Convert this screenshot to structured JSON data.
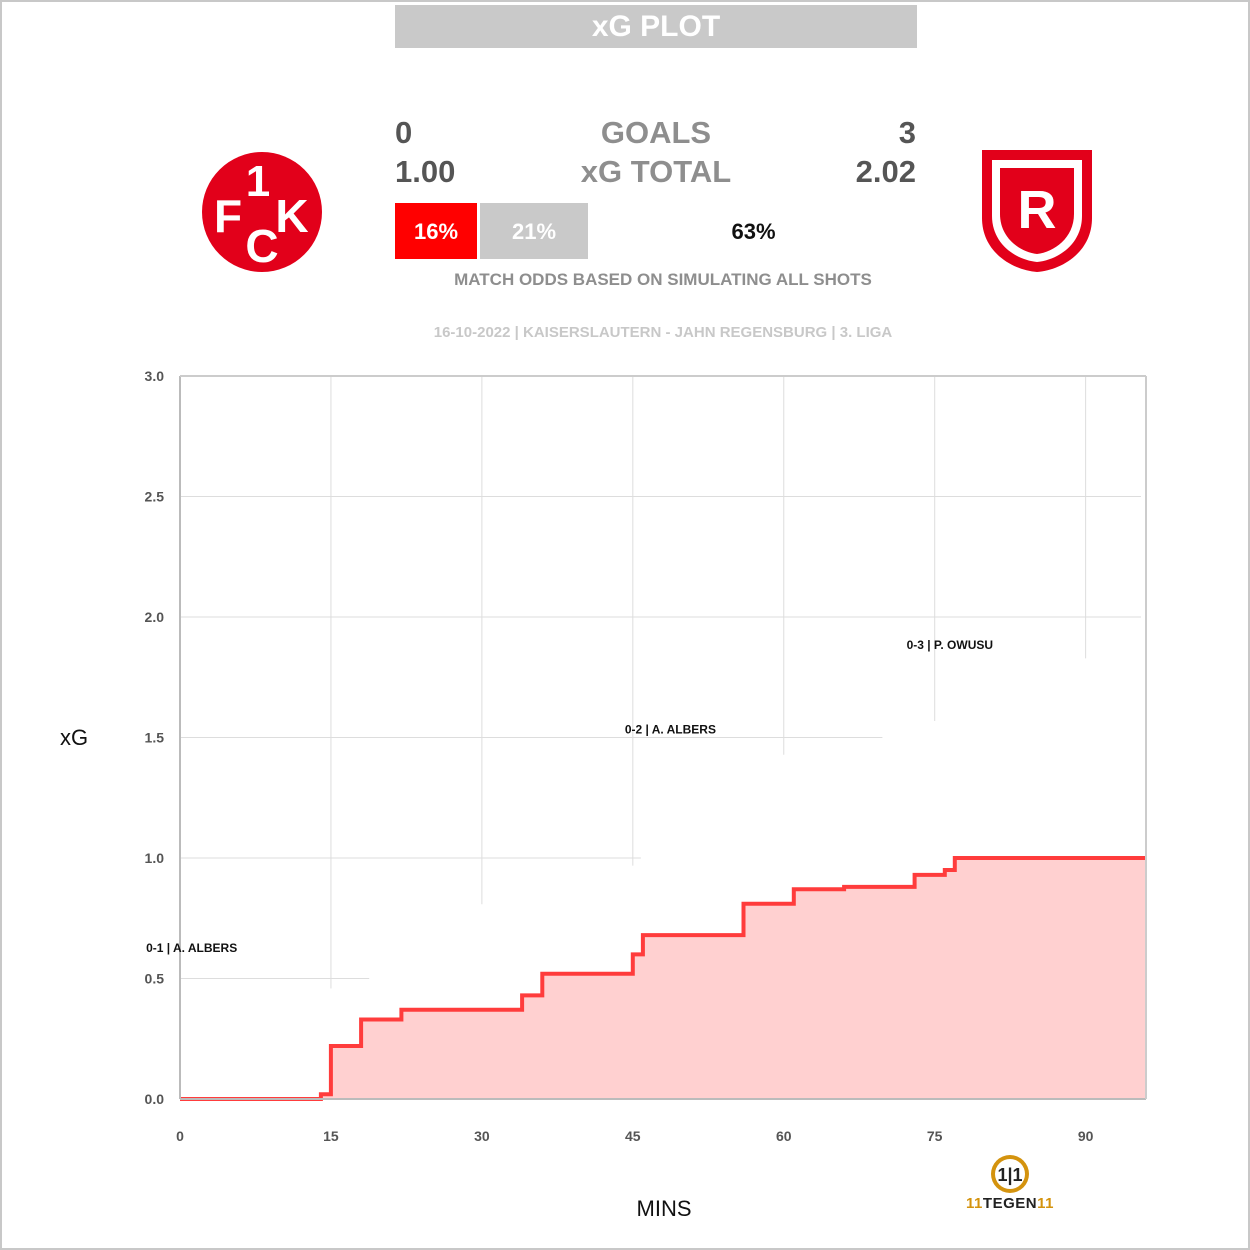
{
  "header": {
    "title": "xG PLOT"
  },
  "score": {
    "home_goals": "0",
    "away_goals": "3",
    "goals_label": "GOALS",
    "home_xg": "1.00",
    "away_xg": "2.02",
    "xg_label": "xG TOTAL"
  },
  "odds": {
    "home": "16%",
    "draw": "21%",
    "away": "63%",
    "home_fraction": 0.16,
    "draw_fraction": 0.21,
    "away_fraction": 0.63,
    "caption": "MATCH ODDS BASED ON SIMULATING ALL SHOTS"
  },
  "match_info": "16-10-2022 | KAISERSLAUTERN - JAHN REGENSBURG | 3. LIGA",
  "teams": {
    "home_logo_text": "1FCK",
    "away_logo_text": "R",
    "home_color": "#e2001a",
    "away_color": "#e2001a"
  },
  "brand": {
    "prefix": "11",
    "name": "TEGEN",
    "suffix": "11",
    "icon": "11-tegen-11-icon"
  },
  "chart_data": {
    "type": "line",
    "title": "",
    "xlabel": "MINS",
    "ylabel": "xG",
    "xlim": [
      0,
      96
    ],
    "ylim": [
      0,
      3
    ],
    "x_ticks": [
      "0",
      "15",
      "30",
      "45",
      "60",
      "75",
      "90"
    ],
    "y_ticks": [
      "0.0",
      "0.5",
      "1.0",
      "1.5",
      "2.0",
      "2.5",
      "3.0"
    ],
    "grid": true,
    "series": [
      {
        "color": "#ff3c3c",
        "fill": "#ffd0d0",
        "step": true,
        "points": [
          [
            0,
            0
          ],
          [
            14,
            0.02
          ],
          [
            15,
            0.22
          ],
          [
            18,
            0.33
          ],
          [
            22,
            0.37
          ],
          [
            34,
            0.43
          ],
          [
            36,
            0.52
          ],
          [
            45,
            0.6
          ],
          [
            46,
            0.68
          ],
          [
            56,
            0.81
          ],
          [
            61,
            0.87
          ],
          [
            66,
            0.88
          ],
          [
            73,
            0.93
          ],
          [
            76,
            0.95
          ],
          [
            77,
            1.0
          ],
          [
            96,
            1.0
          ]
        ]
      },
      {
        "color": "#ffffff",
        "fill": "#ffffff",
        "step": true,
        "points": [
          [
            0,
            0
          ],
          [
            6,
            0.01
          ],
          [
            9,
            0.02
          ],
          [
            12,
            0.05
          ],
          [
            15,
            0.45
          ],
          [
            19,
            0.55
          ],
          [
            24,
            0.65
          ],
          [
            28,
            0.75
          ],
          [
            30,
            0.8
          ],
          [
            35,
            0.83
          ],
          [
            41,
            0.88
          ],
          [
            45,
            0.96
          ],
          [
            46,
            1.02
          ],
          [
            48,
            1.05
          ],
          [
            51,
            1.24
          ],
          [
            56,
            1.33
          ],
          [
            60,
            1.42
          ],
          [
            63,
            1.48
          ],
          [
            70,
            1.5
          ],
          [
            72,
            1.52
          ],
          [
            75,
            1.56
          ],
          [
            77,
            1.6
          ],
          [
            84,
            1.72
          ],
          [
            90,
            1.82
          ],
          [
            96,
            2.02
          ]
        ]
      }
    ],
    "annotations": [
      {
        "x": 1,
        "y": 0.63,
        "text": "0-1 | A. ALBERS"
      }
    ]
  },
  "goal_labels": [
    {
      "x": 45,
      "y": 1.5,
      "text": "0-2 | A. ALBERS"
    },
    {
      "x": 73,
      "y": 1.85,
      "text": "0-3 | P. OWUSU"
    }
  ]
}
